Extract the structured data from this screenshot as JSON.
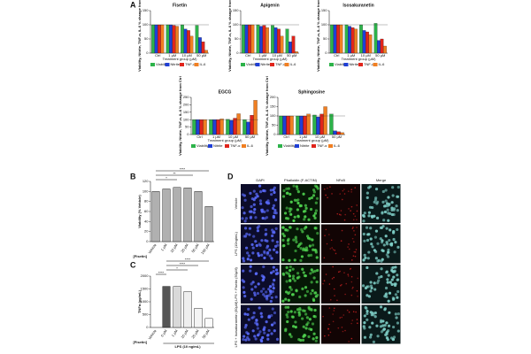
{
  "panel_labels": [
    "A",
    "B",
    "C",
    "D"
  ],
  "chart_data": [
    {
      "type": "bar",
      "title": "Fisetin",
      "y_label": "Viability, Nitrite, TNF-α, IL-6 % change from Ctrl",
      "x_label": "Treatment group (µM)",
      "categories": [
        "Ctrl",
        "1 µM",
        "10 µM",
        "50 µM"
      ],
      "ylim": [
        0,
        150
      ],
      "yticks": [
        0,
        50,
        100,
        150
      ],
      "refline": 100,
      "series": [
        {
          "name": "Viability",
          "color": "#2db34a",
          "values": [
            100,
            100,
            100,
            98
          ]
        },
        {
          "name": "Nitrite",
          "color": "#1f3fd6",
          "values": [
            100,
            100,
            85,
            55
          ]
        },
        {
          "name": "TNF-α",
          "color": "#e0241b",
          "values": [
            100,
            98,
            80,
            40
          ]
        },
        {
          "name": "IL-6",
          "color": "#f07f22",
          "values": [
            100,
            95,
            60,
            10
          ]
        }
      ]
    },
    {
      "type": "bar",
      "title": "Apigenin",
      "y_label": "Viability, Nitrite, TNF-α, IL-6 % change from Ctrl",
      "x_label": "Treatment group (µM)",
      "categories": [
        "Ctrl",
        "1 µM",
        "10 µM",
        "50 µM"
      ],
      "ylim": [
        0,
        150
      ],
      "yticks": [
        0,
        50,
        100,
        150
      ],
      "refline": 100,
      "series": [
        {
          "name": "Viability",
          "color": "#2db34a",
          "values": [
            100,
            100,
            98,
            85
          ]
        },
        {
          "name": "Nitrite",
          "color": "#1f3fd6",
          "values": [
            100,
            95,
            90,
            40
          ]
        },
        {
          "name": "TNF-α",
          "color": "#e0241b",
          "values": [
            100,
            98,
            85,
            60
          ]
        },
        {
          "name": "IL-6",
          "color": "#f07f22",
          "values": [
            100,
            90,
            60,
            5
          ]
        }
      ]
    },
    {
      "type": "bar",
      "title": "Isosakuranetin",
      "y_label": "Viability, Nitrite, TNF-α, IL-6 % change from Ctrl",
      "x_label": "Treatment group (µM)",
      "categories": [
        "Ctrl",
        "1 µM",
        "10 µM",
        "50 µM"
      ],
      "ylim": [
        0,
        150
      ],
      "yticks": [
        0,
        50,
        100,
        150
      ],
      "refline": 100,
      "series": [
        {
          "name": "Viability",
          "color": "#2db34a",
          "values": [
            100,
            100,
            100,
            105
          ]
        },
        {
          "name": "Nitrite",
          "color": "#1f3fd6",
          "values": [
            100,
            95,
            80,
            45
          ]
        },
        {
          "name": "TNF-α",
          "color": "#e0241b",
          "values": [
            100,
            90,
            75,
            50
          ]
        },
        {
          "name": "IL-6",
          "color": "#f07f22",
          "values": [
            100,
            85,
            65,
            25
          ]
        }
      ]
    },
    {
      "type": "bar",
      "title": "EGCG",
      "y_label": "Viability, Nitrite, TNF-α, IL-6 % change from Ctrl",
      "x_label": "Treatment group (µM)",
      "categories": [
        "Ctrl",
        "1 µM",
        "10 µM",
        "50 µM"
      ],
      "ylim": [
        0,
        250
      ],
      "yticks": [
        0,
        50,
        100,
        150,
        200,
        250
      ],
      "refline": 100,
      "series": [
        {
          "name": "Viability",
          "color": "#2db34a",
          "values": [
            100,
            100,
            102,
            100
          ]
        },
        {
          "name": "Nitrite",
          "color": "#1f3fd6",
          "values": [
            100,
            100,
            95,
            85
          ]
        },
        {
          "name": "TNF-α",
          "color": "#e0241b",
          "values": [
            100,
            100,
            110,
            130
          ]
        },
        {
          "name": "IL-6",
          "color": "#f07f22",
          "values": [
            100,
            105,
            140,
            230
          ]
        }
      ]
    },
    {
      "type": "bar",
      "title": "Sphingosine",
      "y_label": "Viability, Nitrite, TNF-α, IL-6 % change from Ctrl",
      "x_label": "Treatment group (µM)",
      "categories": [
        "Ctrl",
        "1 µM",
        "10 µM",
        "50 µM"
      ],
      "ylim": [
        0,
        200
      ],
      "yticks": [
        0,
        50,
        100,
        150,
        200
      ],
      "refline": 100,
      "series": [
        {
          "name": "Viability",
          "color": "#2db34a",
          "values": [
            100,
            100,
            105,
            110
          ]
        },
        {
          "name": "Nitrite",
          "color": "#1f3fd6",
          "values": [
            100,
            100,
            95,
            20
          ]
        },
        {
          "name": "TNF-α",
          "color": "#e0241b",
          "values": [
            100,
            100,
            110,
            15
          ]
        },
        {
          "name": "IL-6",
          "color": "#f07f22",
          "values": [
            100,
            110,
            150,
            10
          ]
        }
      ]
    },
    {
      "type": "bar",
      "y_label": "Viability (% Vehicle)",
      "group_label": "[Fisetin]",
      "categories": [
        "Vehicle",
        "1 µM",
        "10 µM",
        "25 µM",
        "50 µM",
        "100 µM"
      ],
      "values": [
        100,
        105,
        108,
        107,
        100,
        70
      ],
      "color": "#b0b0b0",
      "ylim": [
        0,
        120
      ],
      "yticks": [
        0,
        20,
        40,
        60,
        80,
        100,
        120
      ],
      "annotations": [
        "*",
        "**",
        "****"
      ]
    },
    {
      "type": "bar",
      "y_label": "TNFα (pg/mL)",
      "group_label": "[Fisetin]",
      "bracket_label": "LPS (10 ng/mL)",
      "categories": [
        "Vehicle",
        "0 µM",
        "1 µM",
        "10 µM",
        "25 µM",
        "50 µM"
      ],
      "values": [
        0,
        1600,
        1600,
        1400,
        750,
        350
      ],
      "colors": [
        "#ffffff",
        "#555555",
        "#d9d9d9",
        "#eeeeee",
        "#f4f4f4",
        "#fafafa"
      ],
      "ylim": [
        0,
        2000
      ],
      "yticks": [
        0,
        500,
        1000,
        1500,
        2000
      ],
      "annotations": [
        "****",
        "*",
        "****",
        "****"
      ]
    }
  ],
  "panel_d": {
    "columns": [
      "DAPI",
      "Phalloidin (F-ACTIN)",
      "NFκB",
      "Merge"
    ],
    "rows": [
      "Vehicle",
      "LPS (10ng/mL)",
      "LPS + Fisetin (50µM)",
      "LPS + Isosakuranetin (50µM)"
    ]
  }
}
